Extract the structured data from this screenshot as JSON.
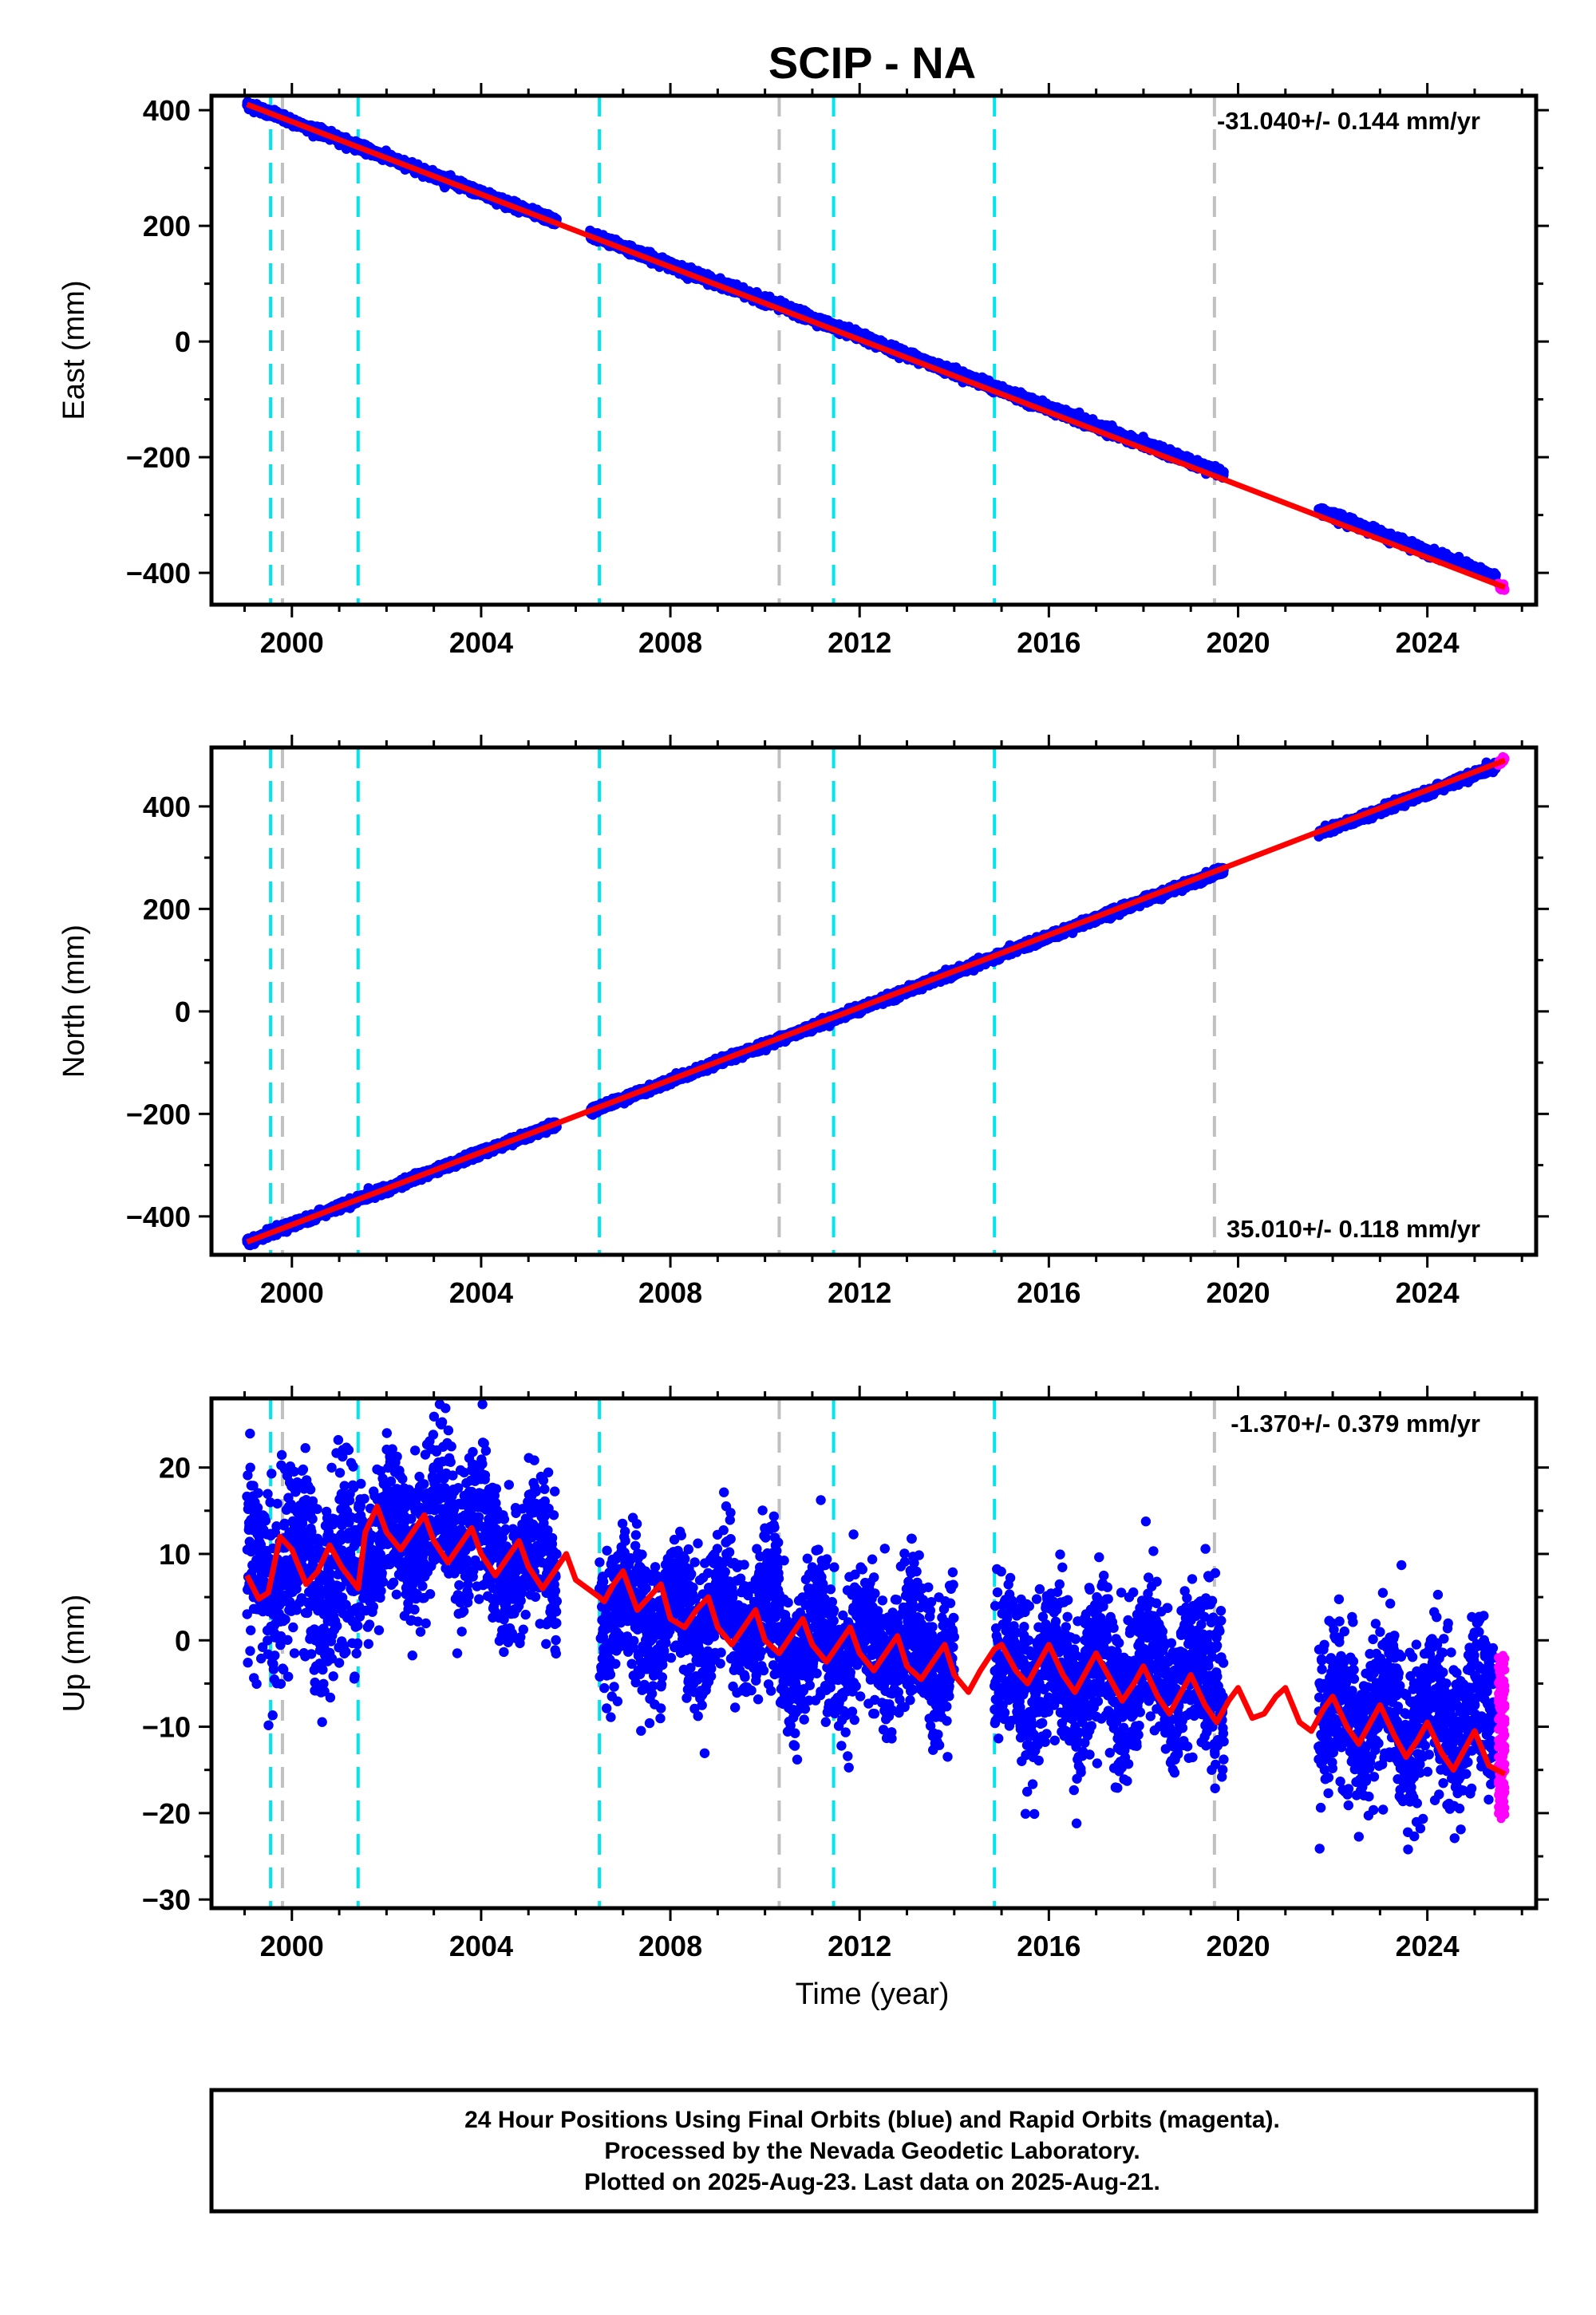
{
  "title": "SCIP - NA",
  "xlabel": "Time (year)",
  "footer_lines": [
    "24 Hour Positions Using Final Orbits (blue) and Rapid Orbits (magenta).",
    "Processed by the Nevada Geodetic Laboratory.",
    "Plotted on 2025-Aug-23. Last data on 2025-Aug-21."
  ],
  "colors": {
    "final_orbit_points": "#0000ff",
    "rapid_orbit_points": "#ff00ff",
    "model_fit": "#ff0000",
    "equipment_change_line": "#00e5ee",
    "other_event_line": "#c0c0c0",
    "frame": "#000000"
  },
  "chart_data": [
    {
      "type": "scatter",
      "panel": "east",
      "ylabel": "East (mm)",
      "rate_label": "-31.040+/- 0.144 mm/yr",
      "rate_position": "top-right",
      "xlim": [
        1998.3,
        2026.3
      ],
      "ylim": [
        -455,
        425
      ],
      "x_ticks": [
        2000,
        2004,
        2008,
        2012,
        2016,
        2020,
        2024
      ],
      "y_ticks": [
        -400,
        -200,
        0,
        200,
        400
      ],
      "y_tick_labels": [
        "−400",
        "−200",
        "0",
        "200",
        "400"
      ],
      "x_tick_labels": [
        "2000",
        "2004",
        "2008",
        "2012",
        "2016",
        "2020",
        "2024"
      ],
      "series": [
        {
          "style": "final-orbit",
          "x_start": 1999.05,
          "x_end": 2025.45,
          "y_start": 410,
          "y_end": -408,
          "scatter_mm": 3.5,
          "gaps": [
            [
              2005.6,
              2006.3
            ],
            [
              2019.7,
              2021.7
            ]
          ]
        },
        {
          "style": "rapid-orbit",
          "x_start": 2025.5,
          "x_end": 2025.64,
          "y_start": -420,
          "y_end": -428,
          "scatter_mm": 3
        }
      ],
      "fit_line": {
        "x": [
          1999.05,
          2025.64
        ],
        "y": [
          410,
          -425
        ]
      },
      "vertical_lines": [
        {
          "x": 1999.55,
          "kind": "equipment"
        },
        {
          "x": 1999.8,
          "kind": "other"
        },
        {
          "x": 2001.4,
          "kind": "equipment"
        },
        {
          "x": 2006.5,
          "kind": "equipment"
        },
        {
          "x": 2010.3,
          "kind": "other"
        },
        {
          "x": 2011.45,
          "kind": "equipment"
        },
        {
          "x": 2014.85,
          "kind": "equipment"
        },
        {
          "x": 2019.5,
          "kind": "other"
        }
      ]
    },
    {
      "type": "scatter",
      "panel": "north",
      "ylabel": "North (mm)",
      "rate_label": "35.010+/- 0.118 mm/yr",
      "rate_position": "bottom-right",
      "xlim": [
        1998.3,
        2026.3
      ],
      "ylim": [
        -475,
        515
      ],
      "x_ticks": [
        2000,
        2004,
        2008,
        2012,
        2016,
        2020,
        2024
      ],
      "y_ticks": [
        -400,
        -200,
        0,
        200,
        400
      ],
      "y_tick_labels": [
        "−400",
        "−200",
        "0",
        "200",
        "400"
      ],
      "x_tick_labels": [
        "2000",
        "2004",
        "2008",
        "2012",
        "2016",
        "2020",
        "2024"
      ],
      "series": [
        {
          "style": "final-orbit",
          "x_start": 1999.05,
          "x_end": 2025.45,
          "y_start": -450,
          "y_end": 478,
          "scatter_mm": 3.5,
          "gaps": [
            [
              2005.6,
              2006.3
            ],
            [
              2019.7,
              2021.7
            ]
          ]
        },
        {
          "style": "rapid-orbit",
          "x_start": 2025.5,
          "x_end": 2025.64,
          "y_start": 484,
          "y_end": 492,
          "scatter_mm": 3
        }
      ],
      "fit_line": {
        "x": [
          1999.05,
          2025.64
        ],
        "y": [
          -450,
          490
        ]
      },
      "vertical_lines": [
        {
          "x": 1999.55,
          "kind": "equipment"
        },
        {
          "x": 1999.8,
          "kind": "other"
        },
        {
          "x": 2001.4,
          "kind": "equipment"
        },
        {
          "x": 2006.5,
          "kind": "equipment"
        },
        {
          "x": 2010.3,
          "kind": "other"
        },
        {
          "x": 2011.45,
          "kind": "equipment"
        },
        {
          "x": 2014.85,
          "kind": "equipment"
        },
        {
          "x": 2019.5,
          "kind": "other"
        }
      ]
    },
    {
      "type": "scatter",
      "panel": "up",
      "ylabel": "Up (mm)",
      "rate_label": "-1.370+/- 0.379 mm/yr",
      "rate_position": "top-right",
      "xlim": [
        1998.3,
        2026.3
      ],
      "ylim": [
        -31,
        28
      ],
      "x_ticks": [
        2000,
        2004,
        2008,
        2012,
        2016,
        2020,
        2024
      ],
      "y_ticks": [
        -30,
        -20,
        -10,
        0,
        10,
        20
      ],
      "y_tick_labels": [
        "−30",
        "−20",
        "−10",
        "0",
        "10",
        "20"
      ],
      "x_tick_labels": [
        "2000",
        "2004",
        "2008",
        "2012",
        "2016",
        "2020",
        "2024"
      ],
      "segments": [
        {
          "x_start": 1999.05,
          "x_end": 2000.4,
          "offset": 8,
          "scatter_mm": 5.5
        },
        {
          "x_start": 2000.4,
          "x_end": 2001.4,
          "offset": 7,
          "scatter_mm": 5.5
        },
        {
          "x_start": 2001.4,
          "x_end": 2002.6,
          "offset": 12,
          "scatter_mm": 4
        },
        {
          "x_start": 2002.6,
          "x_end": 2004.1,
          "offset": 14,
          "scatter_mm": 4.5
        },
        {
          "x_start": 2004.1,
          "x_end": 2005.6,
          "offset": 9,
          "scatter_mm": 4
        },
        {
          "x_start": 2006.5,
          "x_end": 2010.3,
          "offset": 3,
          "scatter_mm": 4
        },
        {
          "x_start": 2010.3,
          "x_end": 2014.0,
          "offset": -1,
          "scatter_mm": 4
        },
        {
          "x_start": 2014.85,
          "x_end": 2019.7,
          "offset": -4,
          "scatter_mm": 4.5
        },
        {
          "x_start": 2021.7,
          "x_end": 2025.45,
          "offset": -9,
          "scatter_mm": 4.5
        }
      ],
      "rapid_orbit_points": {
        "x_start": 2025.5,
        "x_end": 2025.64,
        "y_min": -20,
        "y_max": -2
      },
      "fit_line": {
        "x": [
          1999.05,
          1999.3,
          1999.5,
          1999.75,
          2000.0,
          2000.3,
          2000.55,
          2000.8,
          2001.05,
          2001.4,
          2001.55,
          2001.8,
          2002.0,
          2002.3,
          2002.55,
          2002.8,
          2003.0,
          2003.3,
          2003.55,
          2003.8,
          2004.0,
          2004.3,
          2004.55,
          2004.8,
          2005.0,
          2005.3,
          2005.55,
          2005.8,
          2006.0,
          2006.5,
          2006.6,
          2006.8,
          2007.0,
          2007.3,
          2007.55,
          2007.8,
          2008.0,
          2008.3,
          2008.55,
          2008.8,
          2009.0,
          2009.3,
          2009.55,
          2009.8,
          2010.0,
          2010.3,
          2010.55,
          2010.8,
          2011.0,
          2011.3,
          2011.55,
          2011.8,
          2012.0,
          2012.3,
          2012.55,
          2012.8,
          2013.0,
          2013.3,
          2013.55,
          2013.8,
          2014.0,
          2014.3,
          2014.55,
          2014.85,
          2015.0,
          2015.3,
          2015.55,
          2015.8,
          2016.0,
          2016.3,
          2016.55,
          2016.8,
          2017.0,
          2017.3,
          2017.55,
          2017.8,
          2018.0,
          2018.3,
          2018.55,
          2018.8,
          2019.0,
          2019.3,
          2019.55,
          2019.8,
          2020.0,
          2020.3,
          2020.55,
          2020.8,
          2021.0,
          2021.3,
          2021.55,
          2021.8,
          2022.0,
          2022.3,
          2022.55,
          2022.8,
          2023.0,
          2023.3,
          2023.55,
          2023.8,
          2024.0,
          2024.3,
          2024.55,
          2024.8,
          2025.0,
          2025.3,
          2025.64
        ],
        "y": [
          7.5,
          4.8,
          5.5,
          12.0,
          10.5,
          6.5,
          8.0,
          11.0,
          8.5,
          6.0,
          12.5,
          15.5,
          12.5,
          10.5,
          12.5,
          14.5,
          11.5,
          9.0,
          11.0,
          13.0,
          10.0,
          7.5,
          9.5,
          11.5,
          8.5,
          6.0,
          8.0,
          10.0,
          7.0,
          5.0,
          4.5,
          6.5,
          8.0,
          3.5,
          5.0,
          6.5,
          2.5,
          1.5,
          3.5,
          5.0,
          1.5,
          -0.5,
          1.5,
          3.5,
          0.0,
          -1.5,
          0.5,
          2.5,
          -0.5,
          -2.5,
          -0.5,
          1.5,
          -1.5,
          -3.5,
          -1.5,
          0.5,
          -3.0,
          -4.5,
          -2.5,
          -0.5,
          -4.0,
          -6.0,
          -3.5,
          -1.0,
          -0.5,
          -3.5,
          -5.0,
          -2.5,
          -0.5,
          -4.0,
          -6.0,
          -3.5,
          -1.5,
          -4.5,
          -7.0,
          -5.0,
          -3.0,
          -6.5,
          -8.5,
          -6.0,
          -4.0,
          -7.5,
          -9.5,
          -7.0,
          -5.5,
          -9.0,
          -8.5,
          -6.5,
          -5.5,
          -9.5,
          -10.5,
          -8.0,
          -6.5,
          -10.0,
          -12.0,
          -9.5,
          -7.5,
          -11.0,
          -13.5,
          -11.5,
          -9.5,
          -13.0,
          -15.0,
          -12.5,
          -10.5,
          -14.5,
          -15.5
        ]
      },
      "vertical_lines": [
        {
          "x": 1999.55,
          "kind": "equipment"
        },
        {
          "x": 1999.8,
          "kind": "other"
        },
        {
          "x": 2001.4,
          "kind": "equipment"
        },
        {
          "x": 2006.5,
          "kind": "equipment"
        },
        {
          "x": 2010.3,
          "kind": "other"
        },
        {
          "x": 2011.45,
          "kind": "equipment"
        },
        {
          "x": 2014.85,
          "kind": "equipment"
        },
        {
          "x": 2019.5,
          "kind": "other"
        }
      ]
    }
  ]
}
